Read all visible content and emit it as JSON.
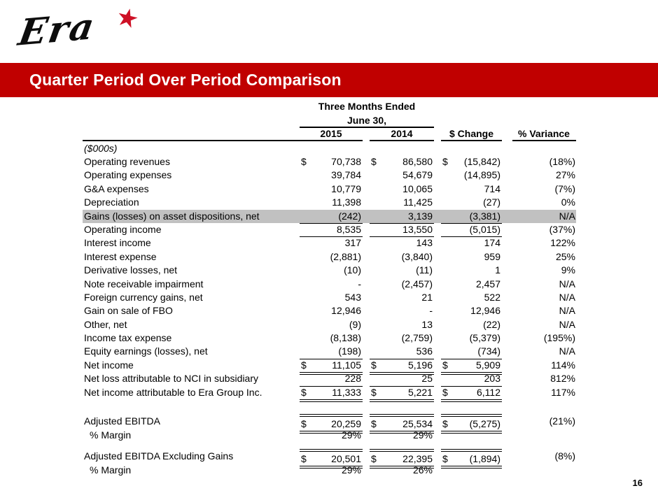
{
  "logo": {
    "text": "Era",
    "star_glyph": "★",
    "star_color": "#ce1126"
  },
  "colors": {
    "banner_red": "#c00000",
    "highlight_gray": "#c1c1c1"
  },
  "title": "Quarter Period Over Period Comparison",
  "page_number": "16",
  "table": {
    "header": {
      "group_line1": "Three Months Ended",
      "group_line2": "June 30,",
      "col_2015": "2015",
      "col_2014": "2014",
      "col_change": "$ Change",
      "col_variance": "% Variance"
    },
    "units_label": "($000s)",
    "rows": [
      {
        "label": "Operating revenues",
        "d1": "$",
        "v1": "70,738",
        "d2": "$",
        "v2": "86,580",
        "d3": "$",
        "v3": "(15,842)",
        "var": "(18%)"
      },
      {
        "label": "Operating expenses",
        "d1": "",
        "v1": "39,784",
        "d2": "",
        "v2": "54,679",
        "d3": "",
        "v3": "(14,895)",
        "var": "27%"
      },
      {
        "label": "G&A expenses",
        "d1": "",
        "v1": "10,779",
        "d2": "",
        "v2": "10,065",
        "d3": "",
        "v3": "714",
        "var": "(7%)"
      },
      {
        "label": "Depreciation",
        "d1": "",
        "v1": "11,398",
        "d2": "",
        "v2": "11,425",
        "d3": "",
        "v3": "(27)",
        "var": "0%"
      },
      {
        "label": "Gains (losses) on asset dispositions, net",
        "d1": "",
        "v1": "(242)",
        "d2": "",
        "v2": "3,139",
        "d3": "",
        "v3": "(3,381)",
        "var": "N/A"
      },
      {
        "label": "Operating income",
        "d1": "",
        "v1": "8,535",
        "d2": "",
        "v2": "13,550",
        "d3": "",
        "v3": "(5,015)",
        "var": "(37%)"
      },
      {
        "label": "Interest income",
        "d1": "",
        "v1": "317",
        "d2": "",
        "v2": "143",
        "d3": "",
        "v3": "174",
        "var": "122%"
      },
      {
        "label": "Interest expense",
        "d1": "",
        "v1": "(2,881)",
        "d2": "",
        "v2": "(3,840)",
        "d3": "",
        "v3": "959",
        "var": "25%"
      },
      {
        "label": "Derivative losses, net",
        "d1": "",
        "v1": "(10)",
        "d2": "",
        "v2": "(11)",
        "d3": "",
        "v3": "1",
        "var": "9%"
      },
      {
        "label": "Note receivable impairment",
        "d1": "",
        "v1": "-",
        "d2": "",
        "v2": "(2,457)",
        "d3": "",
        "v3": "2,457",
        "var": "N/A"
      },
      {
        "label": "Foreign currency gains, net",
        "d1": "",
        "v1": "543",
        "d2": "",
        "v2": "21",
        "d3": "",
        "v3": "522",
        "var": "N/A"
      },
      {
        "label": "Gain on sale of FBO",
        "d1": "",
        "v1": "12,946",
        "d2": "",
        "v2": "-",
        "d3": "",
        "v3": "12,946",
        "var": "N/A"
      },
      {
        "label": "Other, net",
        "d1": "",
        "v1": "(9)",
        "d2": "",
        "v2": "13",
        "d3": "",
        "v3": "(22)",
        "var": "N/A"
      },
      {
        "label": "Income tax expense",
        "d1": "",
        "v1": "(8,138)",
        "d2": "",
        "v2": "(2,759)",
        "d3": "",
        "v3": "(5,379)",
        "var": "(195%)"
      },
      {
        "label": "Equity earnings (losses), net",
        "d1": "",
        "v1": "(198)",
        "d2": "",
        "v2": "536",
        "d3": "",
        "v3": "(734)",
        "var": "N/A"
      },
      {
        "label": "Net income",
        "d1": "$",
        "v1": "11,105",
        "d2": "$",
        "v2": "5,196",
        "d3": "$",
        "v3": "5,909",
        "var": "114%"
      },
      {
        "label": "Net loss attributable to NCI in subsidiary",
        "d1": "",
        "v1": "228",
        "d2": "",
        "v2": "25",
        "d3": "",
        "v3": "203",
        "var": "812%"
      },
      {
        "label": "Net income attributable to Era Group Inc.",
        "d1": "$",
        "v1": "11,333",
        "d2": "$",
        "v2": "5,221",
        "d3": "$",
        "v3": "6,112",
        "var": "117%"
      }
    ],
    "ebitda_rows": [
      {
        "label": "Adjusted EBITDA",
        "d1": "$",
        "v1": "20,259",
        "d2": "$",
        "v2": "25,534",
        "d3": "$",
        "v3": "(5,275)",
        "var": "(21%)"
      },
      {
        "label": "% Margin",
        "v1": "29%",
        "v2": "29%"
      },
      {
        "label": "Adjusted EBITDA Excluding Gains",
        "d1": "$",
        "v1": "20,501",
        "d2": "$",
        "v2": "22,395",
        "d3": "$",
        "v3": "(1,894)",
        "var": "(8%)"
      },
      {
        "label": "% Margin",
        "v1": "29%",
        "v2": "26%"
      }
    ]
  }
}
